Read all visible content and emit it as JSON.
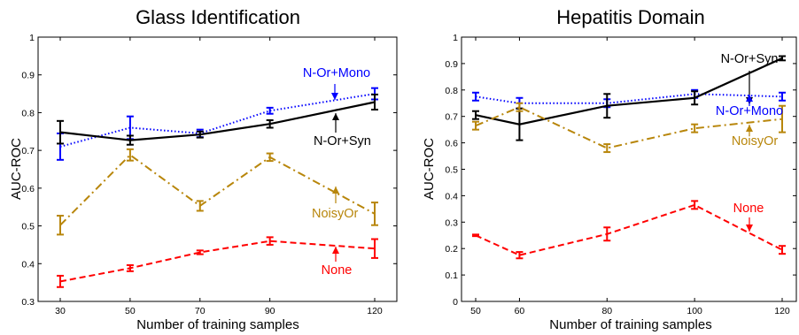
{
  "chart_data": [
    {
      "type": "line",
      "title": "Glass Identification",
      "xlabel": "Number of training samples",
      "ylabel": "AUC-ROC",
      "x": [
        30,
        50,
        70,
        90,
        120
      ],
      "x_ticks": [
        "30",
        "50",
        "70",
        "90",
        "120"
      ],
      "ylim": [
        0.3,
        1
      ],
      "y_ticks": [
        "0.3",
        "0.4",
        "0.5",
        "0.6",
        "0.7",
        "0.8",
        "0.9",
        "1"
      ],
      "grid": false,
      "series": [
        {
          "name": "N-Or+Mono",
          "color": "#0000ff",
          "style": "dotted",
          "values": [
            0.71,
            0.76,
            0.745,
            0.805,
            0.85
          ],
          "err": [
            0.035,
            0.03,
            0.01,
            0.008,
            0.015
          ]
        },
        {
          "name": "N-Or+Syn",
          "color": "#000000",
          "style": "solid",
          "values": [
            0.748,
            0.727,
            0.742,
            0.77,
            0.828
          ],
          "err": [
            0.03,
            0.012,
            0.008,
            0.01,
            0.02
          ]
        },
        {
          "name": "NoisyOr",
          "color": "#b8860b",
          "style": "dashdot",
          "values": [
            0.502,
            0.688,
            0.553,
            0.682,
            0.532
          ],
          "err": [
            0.025,
            0.015,
            0.013,
            0.01,
            0.03
          ]
        },
        {
          "name": "None",
          "color": "#ff0000",
          "style": "dashed",
          "values": [
            0.353,
            0.388,
            0.43,
            0.46,
            0.44
          ],
          "err": [
            0.015,
            0.008,
            0.005,
            0.01,
            0.025
          ]
        }
      ],
      "annotations": [
        {
          "text": "N-Or+Mono",
          "series": "N-Or+Mono"
        },
        {
          "text": "N-Or+Syn",
          "series": "N-Or+Syn"
        },
        {
          "text": "NoisyOr",
          "series": "NoisyOr"
        },
        {
          "text": "None",
          "series": "None"
        }
      ]
    },
    {
      "type": "line",
      "title": "Hepatitis Domain",
      "xlabel": "Number of training samples",
      "ylabel": "AUC-ROC",
      "x": [
        50,
        60,
        80,
        100,
        120
      ],
      "x_ticks": [
        "50",
        "60",
        "80",
        "100",
        "120"
      ],
      "ylim": [
        0,
        1
      ],
      "y_ticks": [
        "0",
        "0.1",
        "0.2",
        "0.3",
        "0.4",
        "0.5",
        "0.6",
        "0.7",
        "0.8",
        "0.9",
        "1"
      ],
      "grid": false,
      "series": [
        {
          "name": "N-Or+Mono",
          "color": "#0000ff",
          "style": "dotted",
          "values": [
            0.775,
            0.75,
            0.75,
            0.785,
            0.775
          ],
          "err": [
            0.015,
            0.02,
            0.015,
            0.015,
            0.015
          ]
        },
        {
          "name": "N-Or+Syn",
          "color": "#000000",
          "style": "solid",
          "values": [
            0.705,
            0.67,
            0.74,
            0.77,
            0.92
          ],
          "err": [
            0.015,
            0.06,
            0.045,
            0.025,
            0.008
          ]
        },
        {
          "name": "NoisyOr",
          "color": "#b8860b",
          "style": "dashdot",
          "values": [
            0.665,
            0.735,
            0.58,
            0.655,
            0.69
          ],
          "err": [
            0.015,
            0.015,
            0.015,
            0.015,
            0.05
          ]
        },
        {
          "name": "None",
          "color": "#ff0000",
          "style": "dashed",
          "values": [
            0.25,
            0.175,
            0.255,
            0.365,
            0.195
          ],
          "err": [
            0.003,
            0.012,
            0.025,
            0.015,
            0.015
          ]
        }
      ],
      "annotations": [
        {
          "text": "N-Or+Syn",
          "series": "N-Or+Syn"
        },
        {
          "text": "N-Or+Mono",
          "series": "N-Or+Mono"
        },
        {
          "text": "NoisyOr",
          "series": "NoisyOr"
        },
        {
          "text": "None",
          "series": "None"
        }
      ]
    }
  ]
}
